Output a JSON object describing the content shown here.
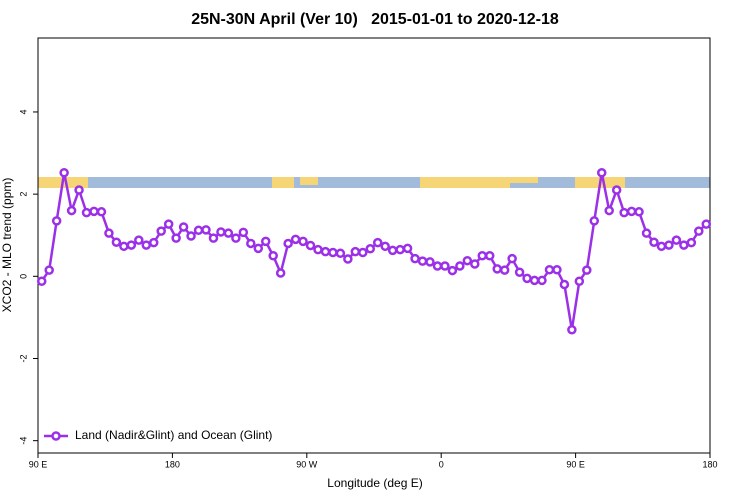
{
  "chart_data": {
    "type": "line",
    "title": "25N-30N April (Ver 10)   2015-01-01 to 2020-12-18",
    "x_label": "Longitude (deg E)",
    "y_label": "XCO2 - MLO trend (ppm)",
    "xlim": [
      90,
      540
    ],
    "xticks": [
      {
        "value": 90,
        "label": "90 E"
      },
      180,
      {
        "value": 270,
        "label": "90 W"
      },
      {
        "value": 360,
        "label": "0"
      },
      {
        "value": 450,
        "label": "90 E"
      },
      {
        "value": 540,
        "label": "180"
      }
    ],
    "ylim": [
      -4.3,
      5.8
    ],
    "yticks": [
      -4,
      -2,
      0,
      2,
      4
    ],
    "legend": "bottomleft",
    "x": [
      92.5,
      97.5,
      102.5,
      107.5,
      112.5,
      117.5,
      122.5,
      127.5,
      132.5,
      137.5,
      142.5,
      147.5,
      152.5,
      157.5,
      162.5,
      167.5,
      172.5,
      177.5,
      182.5,
      187.5,
      192.5,
      197.5,
      202.5,
      207.5,
      212.5,
      217.5,
      222.5,
      227.5,
      232.5,
      237.5,
      242.5,
      247.5,
      252.5,
      257.5,
      262.5,
      267.5,
      272.5,
      277.5,
      282.5,
      287.5,
      292.5,
      297.5,
      302.5,
      307.5,
      312.5,
      317.5,
      322.5,
      327.5,
      332.5,
      337.5,
      342.5,
      347.5,
      352.5,
      357.5,
      362.5,
      367.5,
      372.5,
      377.5,
      382.5,
      387.5,
      392.5,
      397.5,
      402.5,
      407.5,
      412.5,
      417.5,
      422.5,
      427.5,
      432.5,
      437.5,
      442.5,
      447.5,
      452.5,
      457.5,
      462.5,
      467.5,
      472.5,
      477.5,
      482.5,
      487.5,
      492.5,
      497.5,
      502.5,
      507.5,
      512.5,
      517.5,
      522.5,
      527.5,
      532.5,
      537.5
    ],
    "series": [
      {
        "name": "Land (Nadir&Glint) and Ocean (Glint)",
        "color": "#9b30e8",
        "values": [
          -0.12,
          0.15,
          1.35,
          2.52,
          1.6,
          2.1,
          1.55,
          1.58,
          1.57,
          1.05,
          0.83,
          0.73,
          0.76,
          0.88,
          0.76,
          0.82,
          1.1,
          1.27,
          0.93,
          1.2,
          0.98,
          1.12,
          1.13,
          0.93,
          1.08,
          1.05,
          0.93,
          1.07,
          0.8,
          0.68,
          0.85,
          0.5,
          0.08,
          0.8,
          0.9,
          0.85,
          0.75,
          0.65,
          0.6,
          0.58,
          0.56,
          0.42,
          0.6,
          0.58,
          0.67,
          0.82,
          0.73,
          0.63,
          0.65,
          0.68,
          0.43,
          0.37,
          0.35,
          0.25,
          0.25,
          0.14,
          0.25,
          0.38,
          0.3,
          0.5,
          0.5,
          0.18,
          0.15,
          0.43,
          0.1,
          -0.05,
          -0.1,
          -0.1,
          0.16,
          0.16,
          -0.2,
          -1.3,
          -0.12,
          0.15,
          1.35,
          2.52,
          1.6,
          2.1,
          1.55,
          1.58,
          1.57,
          1.05,
          0.83,
          0.73,
          0.76,
          0.88,
          0.76,
          0.82,
          1.1,
          1.27
        ]
      }
    ]
  }
}
